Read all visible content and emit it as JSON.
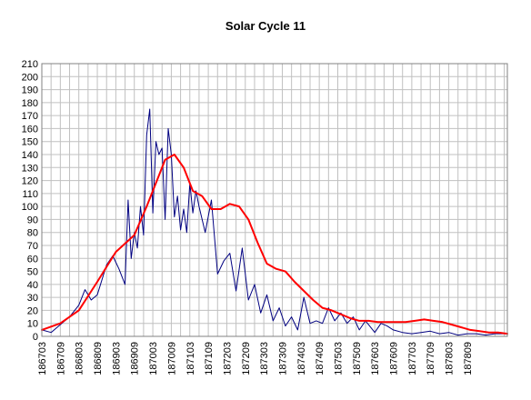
{
  "chart_data": {
    "type": "line",
    "title": "Solar Cycle 11",
    "xlabel": "",
    "ylabel": "",
    "ylim": [
      0,
      210
    ],
    "y_tick_step": 10,
    "grid": true,
    "x_start": "1867-03",
    "x_end": "1879-10",
    "x_tick_labels": [
      "186703",
      "186709",
      "186803",
      "186809",
      "186903",
      "186909",
      "187003",
      "187009",
      "187103",
      "187109",
      "187203",
      "187209",
      "187303",
      "187309",
      "187403",
      "187409",
      "187503",
      "187509",
      "187603",
      "187609",
      "187703",
      "187709",
      "187803",
      "187809"
    ],
    "series": [
      {
        "name": "",
        "color": "#000080",
        "x": [
          "1867-03",
          "1867-06",
          "1867-09",
          "1867-12",
          "1868-03",
          "1868-05",
          "1868-07",
          "1868-09",
          "1868-12",
          "1869-02",
          "1869-04",
          "1869-06",
          "1869-07",
          "1869-08",
          "1869-09",
          "1869-10",
          "1869-11",
          "1869-12",
          "1870-01",
          "1870-02",
          "1870-03",
          "1870-04",
          "1870-05",
          "1870-06",
          "1870-07",
          "1870-08",
          "1870-09",
          "1870-10",
          "1870-11",
          "1870-12",
          "1871-01",
          "1871-02",
          "1871-03",
          "1871-04",
          "1871-05",
          "1871-06",
          "1871-08",
          "1871-10",
          "1871-12",
          "1872-02",
          "1872-04",
          "1872-06",
          "1872-08",
          "1872-10",
          "1872-12",
          "1873-02",
          "1873-04",
          "1873-06",
          "1873-08",
          "1873-10",
          "1873-12",
          "1874-02",
          "1874-04",
          "1874-06",
          "1874-08",
          "1874-10",
          "1874-12",
          "1875-02",
          "1875-04",
          "1875-06",
          "1875-08",
          "1875-10",
          "1875-12",
          "1876-03",
          "1876-05",
          "1876-07",
          "1876-09",
          "1876-12",
          "1877-03",
          "1877-06",
          "1877-09",
          "1877-12",
          "1878-03",
          "1878-06",
          "1878-09",
          "1878-12",
          "1879-03",
          "1879-06",
          "1879-10"
        ],
        "values": [
          5,
          3,
          9,
          15,
          24,
          36,
          28,
          32,
          55,
          62,
          52,
          40,
          105,
          60,
          80,
          68,
          100,
          78,
          155,
          175,
          95,
          150,
          140,
          145,
          90,
          160,
          140,
          92,
          108,
          82,
          98,
          80,
          118,
          95,
          112,
          100,
          80,
          105,
          48,
          58,
          64,
          35,
          68,
          28,
          40,
          18,
          32,
          12,
          22,
          8,
          15,
          5,
          30,
          10,
          12,
          10,
          22,
          12,
          18,
          10,
          15,
          5,
          12,
          3,
          10,
          8,
          5,
          3,
          2,
          3,
          4,
          2,
          3,
          1,
          2,
          2,
          1,
          2,
          2
        ]
      },
      {
        "name": "",
        "color": "#ff0000",
        "x": [
          "1867-03",
          "1867-09",
          "1868-03",
          "1868-09",
          "1869-03",
          "1869-09",
          "1870-01",
          "1870-04",
          "1870-07",
          "1870-10",
          "1871-01",
          "1871-04",
          "1871-07",
          "1871-10",
          "1872-01",
          "1872-04",
          "1872-07",
          "1872-10",
          "1873-01",
          "1873-04",
          "1873-07",
          "1873-10",
          "1874-01",
          "1874-04",
          "1874-07",
          "1874-10",
          "1875-01",
          "1875-04",
          "1875-07",
          "1875-10",
          "1876-01",
          "1876-04",
          "1876-07",
          "1876-10",
          "1877-01",
          "1877-04",
          "1877-07",
          "1877-10",
          "1878-01",
          "1878-04",
          "1878-07",
          "1878-10",
          "1879-01",
          "1879-04",
          "1879-07",
          "1879-10"
        ],
        "values": [
          5,
          10,
          20,
          42,
          65,
          78,
          100,
          118,
          136,
          140,
          130,
          112,
          108,
          98,
          98,
          102,
          100,
          90,
          72,
          56,
          52,
          50,
          42,
          35,
          28,
          22,
          20,
          17,
          14,
          12,
          12,
          11,
          11,
          11,
          11,
          12,
          13,
          12,
          11,
          9,
          7,
          5,
          4,
          3,
          3,
          2
        ]
      }
    ]
  }
}
